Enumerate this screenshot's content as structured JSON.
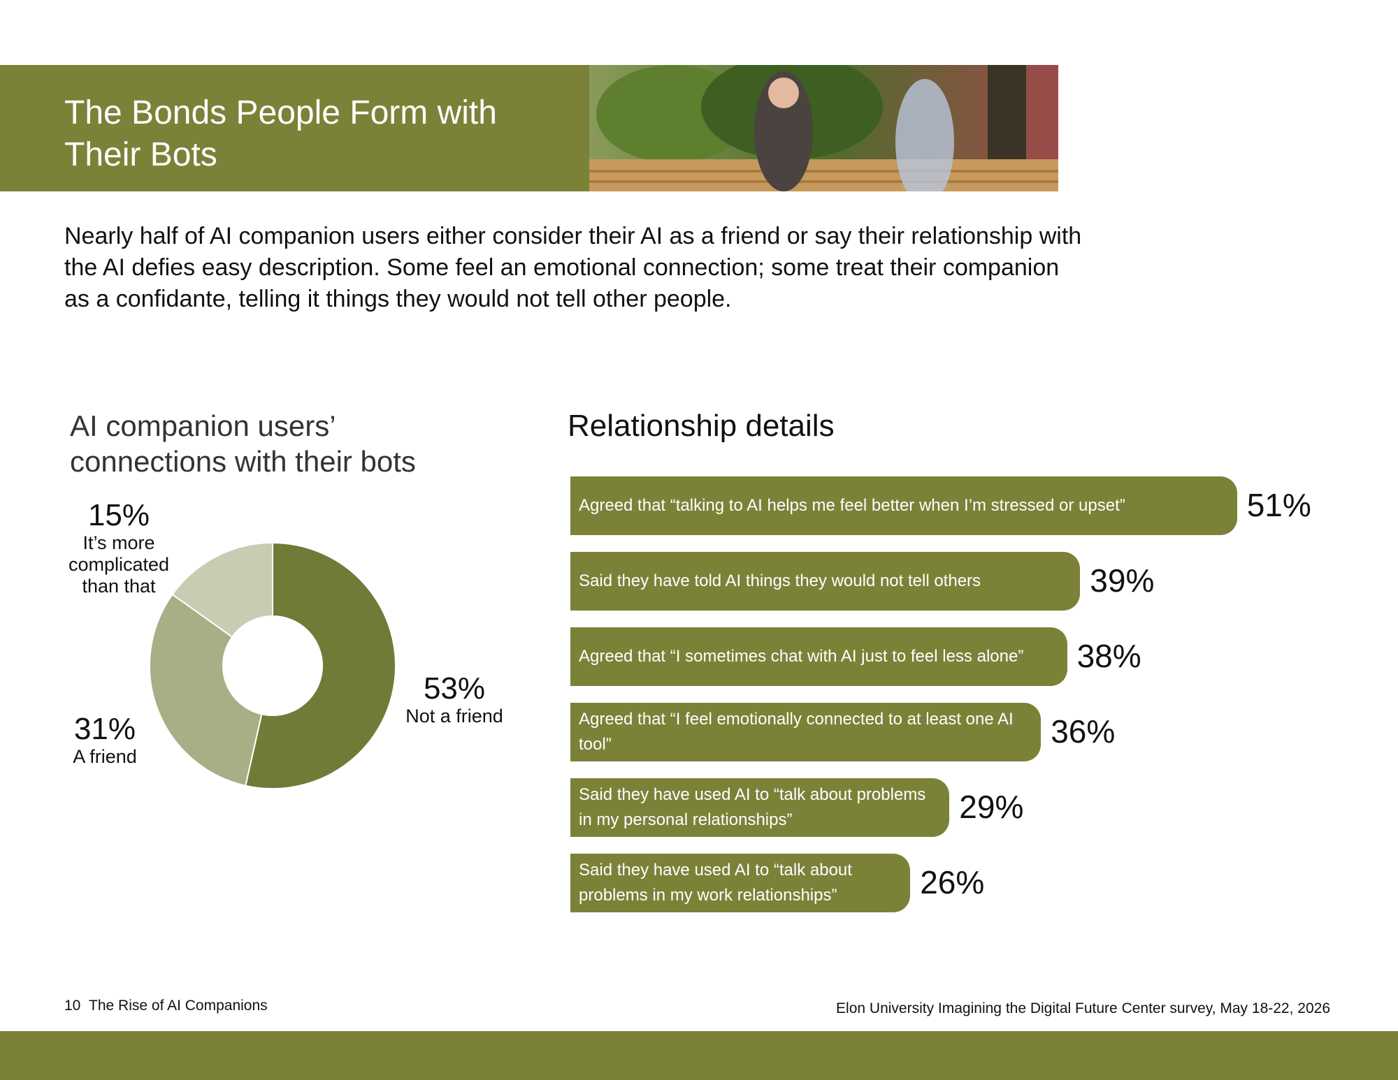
{
  "header": {
    "title": "The Bonds People Form with Their Bots"
  },
  "intro": "Nearly half of AI companion users either consider their AI as a friend or say their relationship with the AI defies easy description. Some feel an emotional connection; some treat their companion as a confidante, telling it things they would not tell other people.",
  "chart_data": [
    {
      "type": "donut",
      "title": "AI companion users’ connections with their bots",
      "categories": [
        "Not a friend",
        "A friend",
        "It’s more complicated than that"
      ],
      "values": [
        53,
        31,
        15
      ],
      "value_labels": [
        "53%",
        "31%",
        "15%"
      ],
      "colors": [
        "#727a38",
        "#a9ae86",
        "#c9cbb2"
      ]
    },
    {
      "type": "bar",
      "title": "Relationship details",
      "categories": [
        "Agreed that “talking to AI helps me feel better when I’m stressed or upset”",
        "Said they have told AI things they would not tell others",
        "Agreed that “I sometimes chat with AI just to feel less alone”",
        "Agreed that “I feel emotionally connected to at least one AI tool”",
        "Said they have used AI to “talk about problems in my personal relationships”",
        "Said they have used AI to “talk about problems in my work relationships”"
      ],
      "values": [
        51,
        39,
        38,
        36,
        29,
        26
      ],
      "value_labels": [
        "51%",
        "39%",
        "38%",
        "36%",
        "29%",
        "26%"
      ],
      "color": "#7b8238"
    }
  ],
  "footer": {
    "page": "10",
    "publication": "The Rise of AI Companions",
    "source": "Elon University Imagining the Digital Future Center survey, May 18-22, 2026"
  }
}
